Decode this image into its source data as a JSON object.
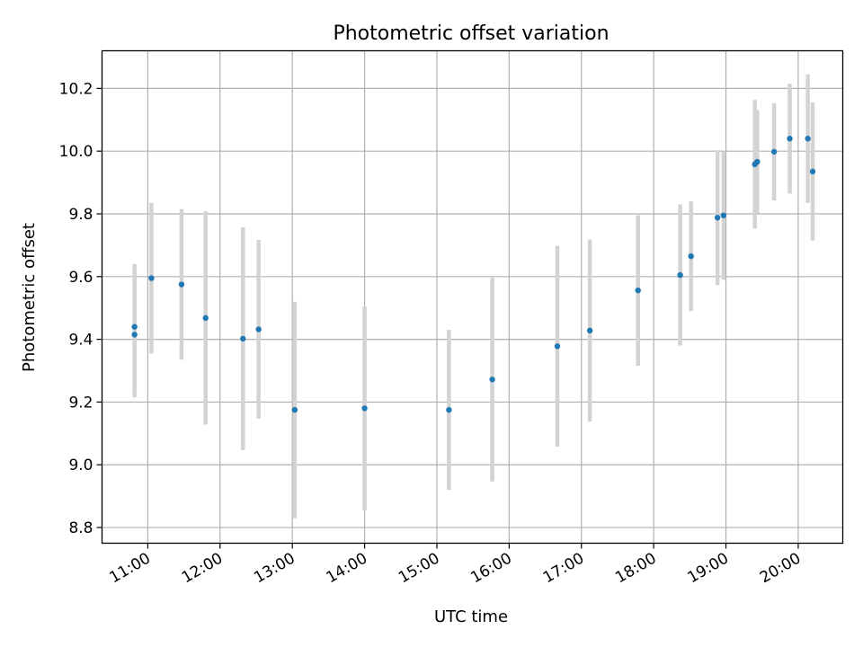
{
  "chart_data": {
    "type": "scatter",
    "title": "Photometric offset variation",
    "xlabel": "UTC time",
    "ylabel": "Photometric offset",
    "x_ticks": [
      "11:00",
      "12:00",
      "13:00",
      "14:00",
      "15:00",
      "16:00",
      "17:00",
      "18:00",
      "19:00",
      "20:00"
    ],
    "y_ticks": [
      "8.8",
      "9.0",
      "9.2",
      "9.4",
      "9.6",
      "9.8",
      "10.0",
      "10.2"
    ],
    "xlim": [
      "10:22",
      "20:37"
    ],
    "ylim": [
      8.75,
      10.32
    ],
    "grid": true,
    "colors": {
      "points": "#1f77b4",
      "error_bars": "#d3d3d3"
    },
    "series": [
      {
        "points": [
          {
            "x": "10:49",
            "y": 9.44,
            "err": 0.2
          },
          {
            "x": "10:49",
            "y": 9.415,
            "err": 0.2
          },
          {
            "x": "11:03",
            "y": 9.595,
            "err": 0.24
          },
          {
            "x": "11:28",
            "y": 9.575,
            "err": 0.24
          },
          {
            "x": "11:48",
            "y": 9.468,
            "err": 0.34
          },
          {
            "x": "12:19",
            "y": 9.402,
            "err": 0.355
          },
          {
            "x": "12:32",
            "y": 9.432,
            "err": 0.285
          },
          {
            "x": "13:02",
            "y": 9.175,
            "err": 0.345
          },
          {
            "x": "14:00",
            "y": 9.18,
            "err": 0.325
          },
          {
            "x": "15:10",
            "y": 9.175,
            "err": 0.255
          },
          {
            "x": "15:46",
            "y": 9.272,
            "err": 0.325
          },
          {
            "x": "16:40",
            "y": 9.378,
            "err": 0.32
          },
          {
            "x": "17:07",
            "y": 9.428,
            "err": 0.29
          },
          {
            "x": "17:47",
            "y": 9.556,
            "err": 0.24
          },
          {
            "x": "18:22",
            "y": 9.605,
            "err": 0.225
          },
          {
            "x": "18:31",
            "y": 9.665,
            "err": 0.175
          },
          {
            "x": "18:53",
            "y": 9.788,
            "err": 0.215
          },
          {
            "x": "18:58",
            "y": 9.795,
            "err": 0.205
          },
          {
            "x": "19:24",
            "y": 9.958,
            "err": 0.205
          },
          {
            "x": "19:26",
            "y": 9.966,
            "err": 0.165
          },
          {
            "x": "19:40",
            "y": 9.998,
            "err": 0.155
          },
          {
            "x": "19:53",
            "y": 10.04,
            "err": 0.175
          },
          {
            "x": "20:08",
            "y": 10.04,
            "err": 0.205
          },
          {
            "x": "20:12",
            "y": 9.935,
            "err": 0.22
          }
        ]
      }
    ]
  }
}
